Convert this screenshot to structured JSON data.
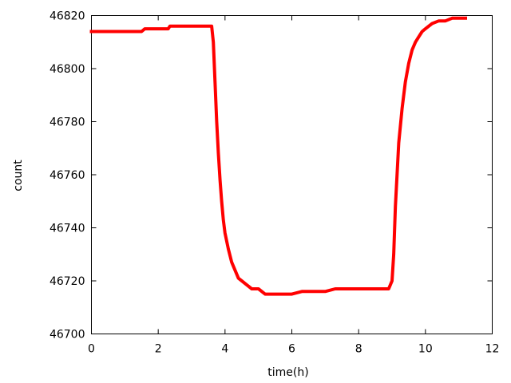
{
  "chart_data": {
    "type": "line",
    "title": "",
    "xlabel": "time(h)",
    "ylabel": "count",
    "xlim": [
      0,
      12
    ],
    "ylim": [
      46700,
      46820
    ],
    "xticks": [
      0,
      2,
      4,
      6,
      8,
      10,
      12
    ],
    "yticks": [
      46700,
      46720,
      46740,
      46760,
      46780,
      46800,
      46820
    ],
    "xtick_labels": [
      "0",
      "2",
      "4",
      "6",
      "8",
      "10",
      "12"
    ],
    "ytick_labels": [
      "46700",
      "46720",
      "46740",
      "46760",
      "46780",
      "46800",
      "46820"
    ],
    "grid": false,
    "legend": "none",
    "series": [
      {
        "color": "#ff0000",
        "x": [
          0,
          0.5,
          1.0,
          1.5,
          1.6,
          2.0,
          2.3,
          2.35,
          3.0,
          3.5,
          3.6,
          3.65,
          3.7,
          3.75,
          3.8,
          3.85,
          3.9,
          3.95,
          4.0,
          4.1,
          4.2,
          4.3,
          4.4,
          4.5,
          4.6,
          4.8,
          5.0,
          5.2,
          5.5,
          6.0,
          6.3,
          6.5,
          7.0,
          7.3,
          7.5,
          8.0,
          8.5,
          8.9,
          9.0,
          9.05,
          9.1,
          9.15,
          9.2,
          9.3,
          9.4,
          9.5,
          9.6,
          9.7,
          9.8,
          9.9,
          10.0,
          10.2,
          10.4,
          10.6,
          10.8,
          11.0,
          11.2
        ],
        "y": [
          46814,
          46814,
          46814,
          46814,
          46815,
          46815,
          46815,
          46816,
          46816,
          46816,
          46816,
          46810,
          46795,
          46780,
          46768,
          46758,
          46750,
          46743,
          46738,
          46732,
          46727,
          46724,
          46721,
          46720,
          46719,
          46717,
          46717,
          46715,
          46715,
          46715,
          46716,
          46716,
          46716,
          46717,
          46717,
          46717,
          46717,
          46717,
          46720,
          46730,
          46748,
          46760,
          46772,
          46785,
          46795,
          46802,
          46807,
          46810,
          46812,
          46814,
          46815,
          46817,
          46818,
          46818,
          46819,
          46819,
          46819
        ]
      }
    ]
  }
}
